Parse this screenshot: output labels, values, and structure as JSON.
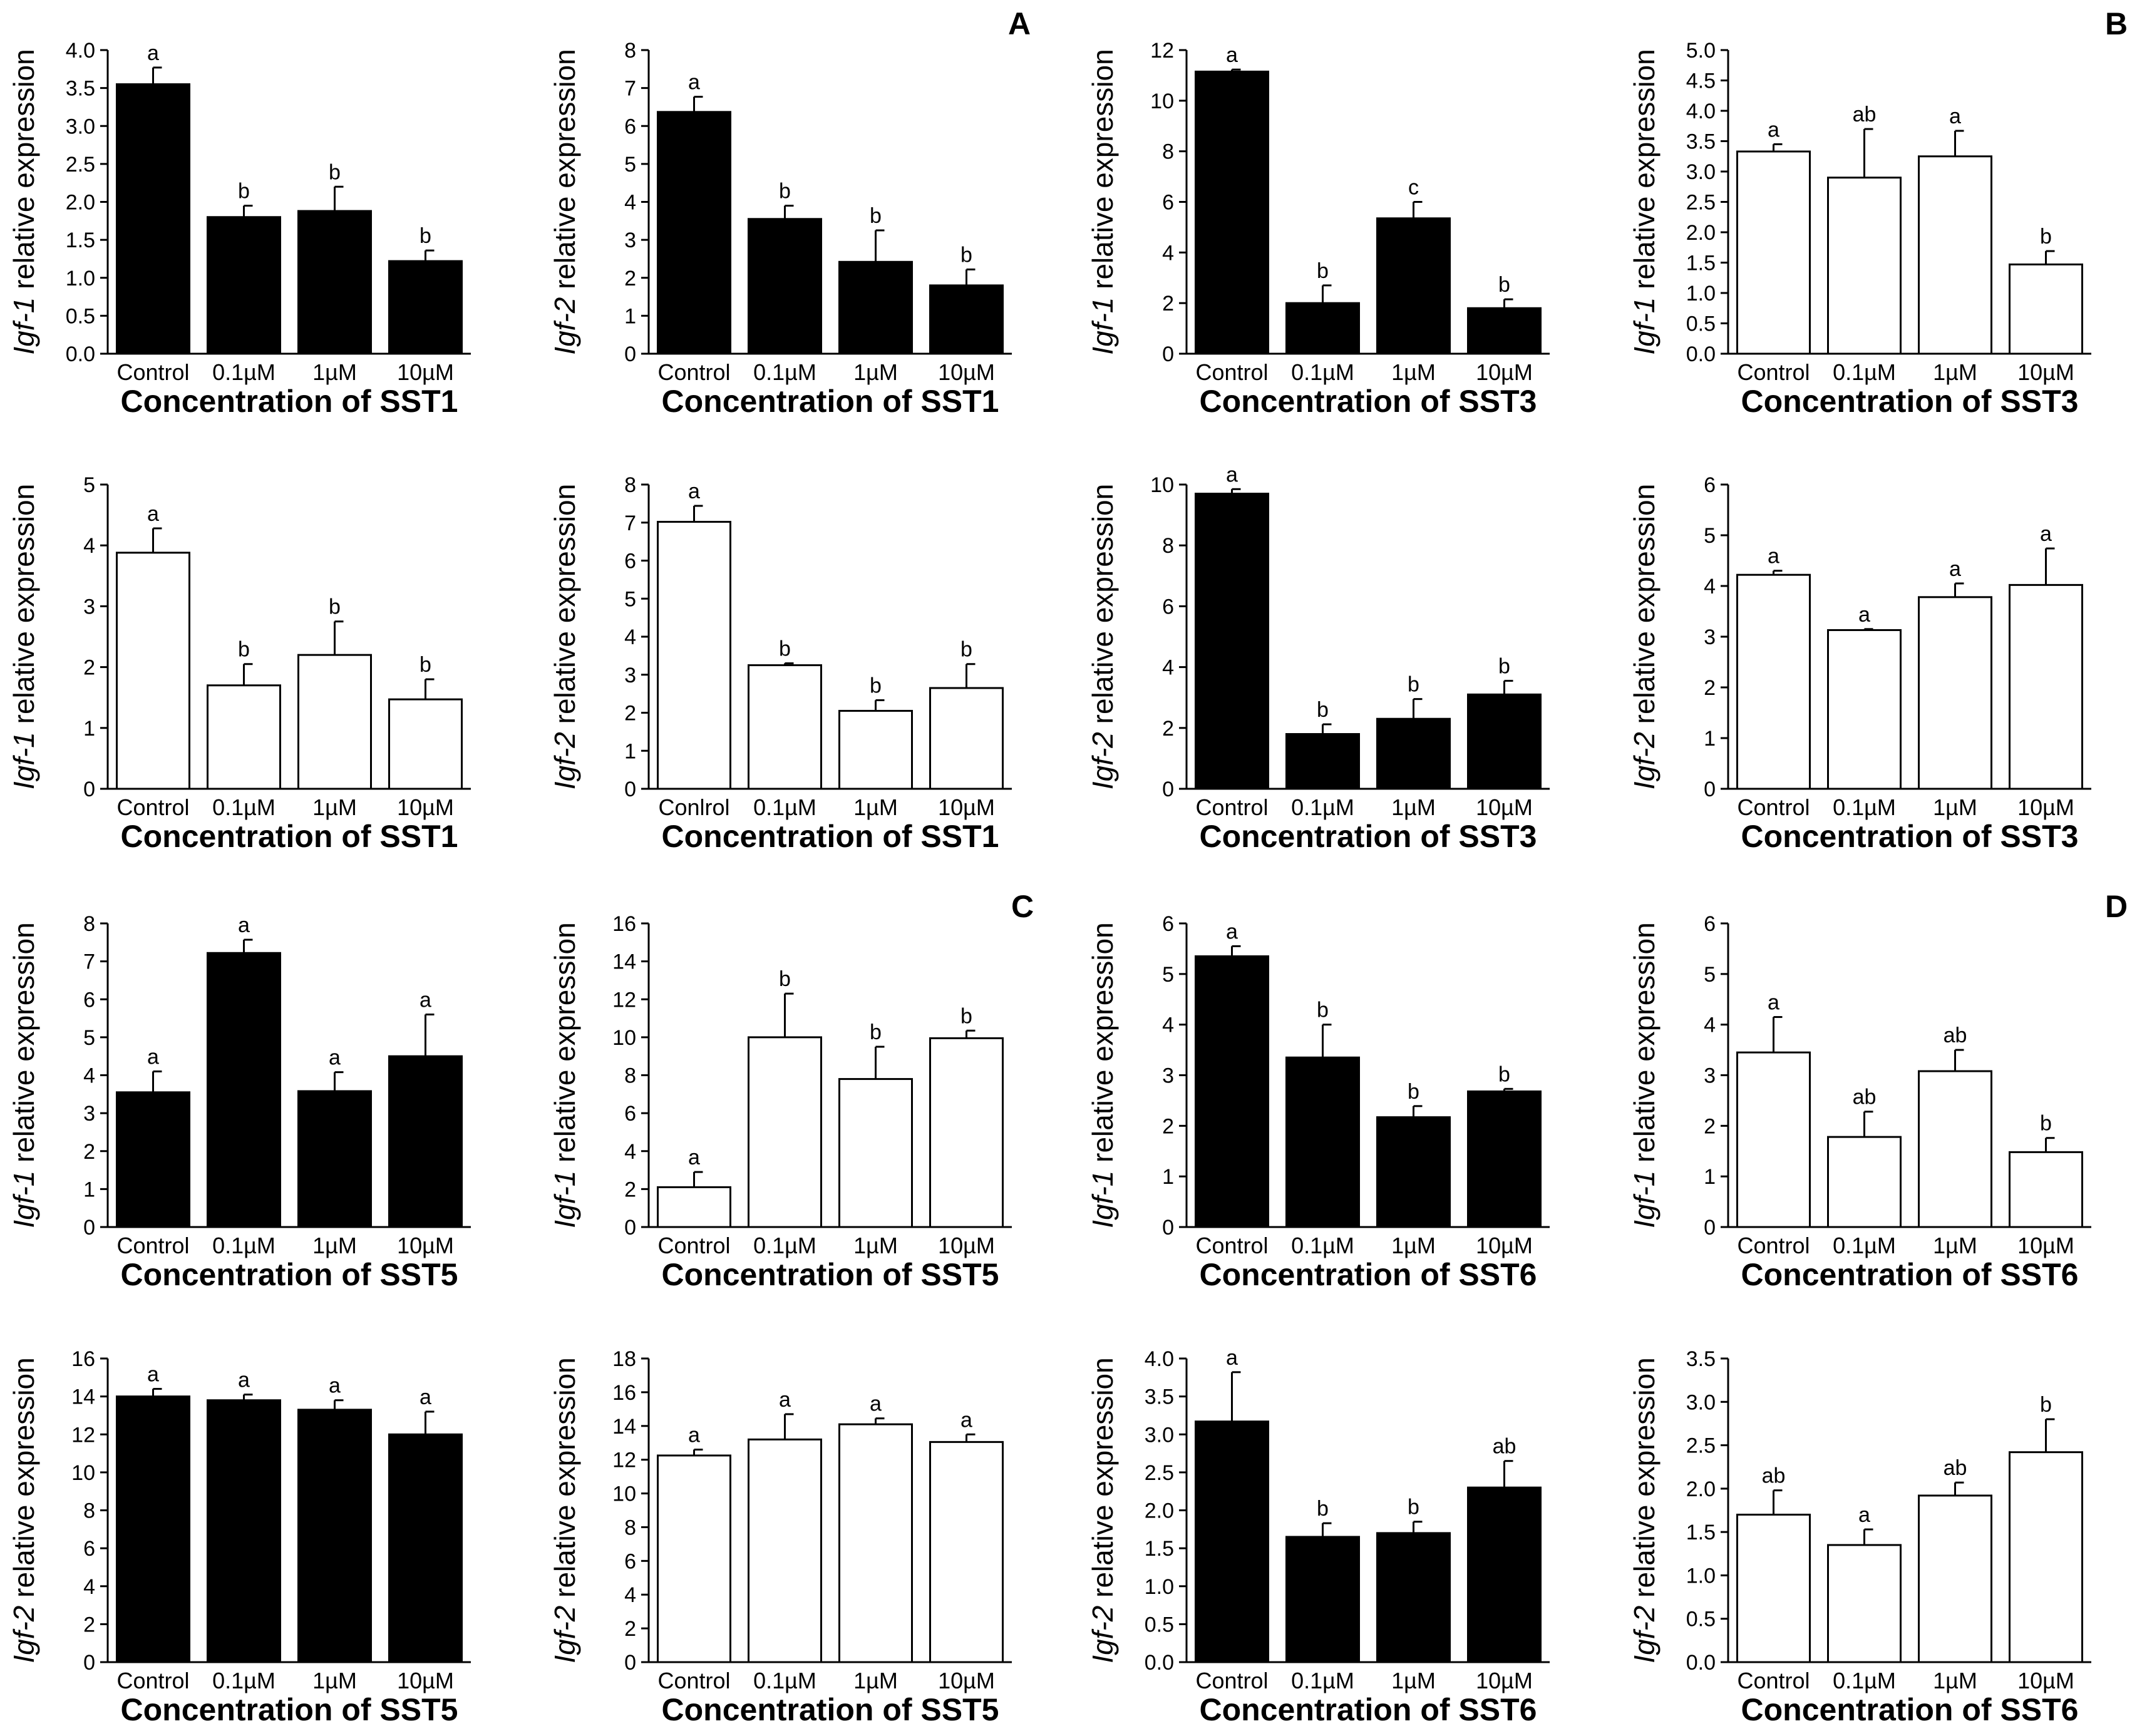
{
  "panel_letters": [
    "A",
    "B",
    "C",
    "D"
  ],
  "chart_data": [
    {
      "type": "bar",
      "fill": "#000000",
      "gene": "Igf-1",
      "ylabel_rest": " relative expression",
      "xlabel": "Concentration of SST1",
      "categories": [
        "Control",
        "0.1µM",
        "1µM",
        "10µM"
      ],
      "values": [
        3.55,
        1.8,
        1.88,
        1.22
      ],
      "errors": [
        0.22,
        0.15,
        0.32,
        0.14
      ],
      "sig": [
        "a",
        "b",
        "b",
        "b"
      ],
      "ylim": [
        0,
        4.0
      ],
      "yticks": [
        "0.0",
        "0.5",
        "1.0",
        "1.5",
        "2.0",
        "2.5",
        "3.0",
        "3.5",
        "4.0"
      ]
    },
    {
      "type": "bar",
      "fill": "#000000",
      "gene": "Igf-2",
      "ylabel_rest": " relative expression",
      "xlabel": "Concentration of SST1",
      "categories": [
        "Control",
        "0.1µM",
        "1µM",
        "10µM"
      ],
      "values": [
        6.37,
        3.55,
        2.42,
        1.8
      ],
      "errors": [
        0.4,
        0.35,
        0.83,
        0.42
      ],
      "sig": [
        "a",
        "b",
        "b",
        "b"
      ],
      "ylim": [
        0,
        8
      ],
      "yticks": [
        "0",
        "1",
        "2",
        "3",
        "4",
        "5",
        "6",
        "7",
        "8"
      ]
    },
    {
      "type": "bar",
      "fill": "#000000",
      "gene": "Igf-1",
      "ylabel_rest": " relative expression",
      "xlabel": "Concentration of SST3",
      "categories": [
        "Control",
        "0.1µM",
        "1µM",
        "10µM"
      ],
      "values": [
        11.15,
        2.0,
        5.35,
        1.8
      ],
      "errors": [
        0.08,
        0.7,
        0.65,
        0.35
      ],
      "sig": [
        "a",
        "b",
        "c",
        "b"
      ],
      "ylim": [
        0,
        12
      ],
      "yticks": [
        "0",
        "2",
        "4",
        "6",
        "8",
        "10",
        "12"
      ]
    },
    {
      "type": "bar",
      "fill": "#ffffff",
      "gene": "Igf-1",
      "ylabel_rest": " relative expression",
      "xlabel": "Concentration of SST3",
      "categories": [
        "Control",
        "0.1µM",
        "1µM",
        "10µM"
      ],
      "values": [
        3.33,
        2.9,
        3.25,
        1.47
      ],
      "errors": [
        0.12,
        0.8,
        0.42,
        0.22
      ],
      "sig": [
        "a",
        "ab",
        "a",
        "b"
      ],
      "ylim": [
        0,
        5.0
      ],
      "yticks": [
        "0.0",
        "0.5",
        "1.0",
        "1.5",
        "2.0",
        "2.5",
        "3.0",
        "3.5",
        "4.0",
        "4.5",
        "5.0"
      ]
    },
    {
      "type": "bar",
      "fill": "#ffffff",
      "gene": "Igf-1",
      "ylabel_rest": " relative expression",
      "xlabel": "Concentration of SST1",
      "categories": [
        "Control",
        "0.1µM",
        "1µM",
        "10µM"
      ],
      "values": [
        3.88,
        1.7,
        2.2,
        1.47
      ],
      "errors": [
        0.4,
        0.35,
        0.55,
        0.33
      ],
      "sig": [
        "a",
        "b",
        "b",
        "b"
      ],
      "ylim": [
        0,
        5
      ],
      "yticks": [
        "0",
        "1",
        "2",
        "3",
        "4",
        "5"
      ]
    },
    {
      "type": "bar",
      "fill": "#ffffff",
      "gene": "Igf-2",
      "ylabel_rest": " relative expression",
      "xlabel": "Concentration of SST1",
      "categories": [
        "Conlrol",
        "0.1µM",
        "1µM",
        "10µM"
      ],
      "values": [
        7.02,
        3.25,
        2.05,
        2.65
      ],
      "errors": [
        0.42,
        0.05,
        0.28,
        0.63
      ],
      "sig": [
        "a",
        "b",
        "b",
        "b"
      ],
      "ylim": [
        0,
        8
      ],
      "yticks": [
        "0",
        "1",
        "2",
        "3",
        "4",
        "5",
        "6",
        "7",
        "8"
      ]
    },
    {
      "type": "bar",
      "fill": "#000000",
      "gene": "Igf-2",
      "ylabel_rest": " relative expression",
      "xlabel": "Concentration of SST3",
      "categories": [
        "Control",
        "0.1µM",
        "1µM",
        "10µM"
      ],
      "values": [
        9.7,
        1.8,
        2.3,
        3.1
      ],
      "errors": [
        0.15,
        0.32,
        0.65,
        0.45
      ],
      "sig": [
        "a",
        "b",
        "b",
        "b"
      ],
      "ylim": [
        0,
        10
      ],
      "yticks": [
        "0",
        "2",
        "4",
        "6",
        "8",
        "10"
      ]
    },
    {
      "type": "bar",
      "fill": "#ffffff",
      "gene": "Igf-2",
      "ylabel_rest": " relative expression",
      "xlabel": "Concentration of SST3",
      "categories": [
        "Control",
        "0.1µM",
        "1µM",
        "10µM"
      ],
      "values": [
        4.22,
        3.13,
        3.78,
        4.02
      ],
      "errors": [
        0.08,
        0.02,
        0.27,
        0.72
      ],
      "sig": [
        "a",
        "a",
        "a",
        "a"
      ],
      "ylim": [
        0,
        6
      ],
      "yticks": [
        "0",
        "1",
        "2",
        "3",
        "4",
        "5",
        "6"
      ]
    },
    {
      "type": "bar",
      "fill": "#000000",
      "gene": "Igf-1",
      "ylabel_rest": " relative expression",
      "xlabel": "Concentration of SST5",
      "categories": [
        "Control",
        "0.1µM",
        "1µM",
        "10µM"
      ],
      "values": [
        3.55,
        7.22,
        3.58,
        4.5
      ],
      "errors": [
        0.55,
        0.35,
        0.5,
        1.1
      ],
      "sig": [
        "a",
        "a",
        "a",
        "a"
      ],
      "ylim": [
        0,
        8
      ],
      "yticks": [
        "0",
        "1",
        "2",
        "3",
        "4",
        "5",
        "6",
        "7",
        "8"
      ]
    },
    {
      "type": "bar",
      "fill": "#ffffff",
      "gene": "Igf-1",
      "ylabel_rest": " relative expression",
      "xlabel": "Concentration of SST5",
      "categories": [
        "Control",
        "0.1µM",
        "1µM",
        "10µM"
      ],
      "values": [
        2.1,
        10.0,
        7.8,
        9.95
      ],
      "errors": [
        0.8,
        2.3,
        1.7,
        0.4
      ],
      "sig": [
        "a",
        "b",
        "b",
        "b"
      ],
      "ylim": [
        0,
        16
      ],
      "yticks": [
        "0",
        "2",
        "4",
        "6",
        "8",
        "10",
        "12",
        "14",
        "16"
      ]
    },
    {
      "type": "bar",
      "fill": "#000000",
      "gene": "Igf-1",
      "ylabel_rest": " relative expression",
      "xlabel": "Concentration of SST6",
      "categories": [
        "Control",
        "0.1µM",
        "1µM",
        "10µM"
      ],
      "values": [
        5.35,
        3.35,
        2.17,
        2.68
      ],
      "errors": [
        0.2,
        0.65,
        0.22,
        0.05
      ],
      "sig": [
        "a",
        "b",
        "b",
        "b"
      ],
      "ylim": [
        0,
        6
      ],
      "yticks": [
        "0",
        "1",
        "2",
        "3",
        "4",
        "5",
        "6"
      ]
    },
    {
      "type": "bar",
      "fill": "#ffffff",
      "gene": "Igf-1",
      "ylabel_rest": " relative expression",
      "xlabel": "Concentration of SST6",
      "categories": [
        "Control",
        "0.1µM",
        "1µM",
        "10µM"
      ],
      "values": [
        3.45,
        1.78,
        3.08,
        1.48
      ],
      "errors": [
        0.7,
        0.5,
        0.42,
        0.28
      ],
      "sig": [
        "a",
        "ab",
        "ab",
        "b"
      ],
      "ylim": [
        0,
        6
      ],
      "yticks": [
        "0",
        "1",
        "2",
        "3",
        "4",
        "5",
        "6"
      ]
    },
    {
      "type": "bar",
      "fill": "#000000",
      "gene": "Igf-2",
      "ylabel_rest": " relative expression",
      "xlabel": "Concentration of SST5",
      "categories": [
        "Control",
        "0.1µM",
        "1µM",
        "10µM"
      ],
      "values": [
        14.0,
        13.8,
        13.3,
        12.0
      ],
      "errors": [
        0.4,
        0.3,
        0.5,
        1.2
      ],
      "sig": [
        "a",
        "a",
        "a",
        "a"
      ],
      "ylim": [
        0,
        16
      ],
      "yticks": [
        "0",
        "2",
        "4",
        "6",
        "8",
        "10",
        "12",
        "14",
        "16"
      ]
    },
    {
      "type": "bar",
      "fill": "#ffffff",
      "gene": "Igf-2",
      "ylabel_rest": " relative expression",
      "xlabel": "Concentration of SST5",
      "categories": [
        "Control",
        "0.1µM",
        "1µM",
        "10µM"
      ],
      "values": [
        12.25,
        13.2,
        14.1,
        13.05
      ],
      "errors": [
        0.35,
        1.5,
        0.35,
        0.45
      ],
      "sig": [
        "a",
        "a",
        "a",
        "a"
      ],
      "ylim": [
        0,
        18
      ],
      "yticks": [
        "0",
        "2",
        "4",
        "6",
        "8",
        "10",
        "12",
        "14",
        "16",
        "18"
      ]
    },
    {
      "type": "bar",
      "fill": "#000000",
      "gene": "Igf-2",
      "ylabel_rest": " relative expression",
      "xlabel": "Concentration of SST6",
      "categories": [
        "Control",
        "0.1µM",
        "1µM",
        "10µM"
      ],
      "values": [
        3.17,
        1.65,
        1.7,
        2.3
      ],
      "errors": [
        0.65,
        0.18,
        0.15,
        0.35
      ],
      "sig": [
        "a",
        "b",
        "b",
        "ab"
      ],
      "ylim": [
        0,
        4.0
      ],
      "yticks": [
        "0.0",
        "0.5",
        "1.0",
        "1.5",
        "2.0",
        "2.5",
        "3.0",
        "3.5",
        "4.0"
      ]
    },
    {
      "type": "bar",
      "fill": "#ffffff",
      "gene": "Igf-2",
      "ylabel_rest": " relative expression",
      "xlabel": "Concentration of SST6",
      "categories": [
        "Control",
        "0.1µM",
        "1µM",
        "10µM"
      ],
      "values": [
        1.7,
        1.35,
        1.92,
        2.42
      ],
      "errors": [
        0.28,
        0.18,
        0.15,
        0.38
      ],
      "sig": [
        "ab",
        "a",
        "ab",
        "b"
      ],
      "ylim": [
        0,
        3.5
      ],
      "yticks": [
        "0.0",
        "0.5",
        "1.0",
        "1.5",
        "2.0",
        "2.5",
        "3.0",
        "3.5"
      ]
    }
  ]
}
